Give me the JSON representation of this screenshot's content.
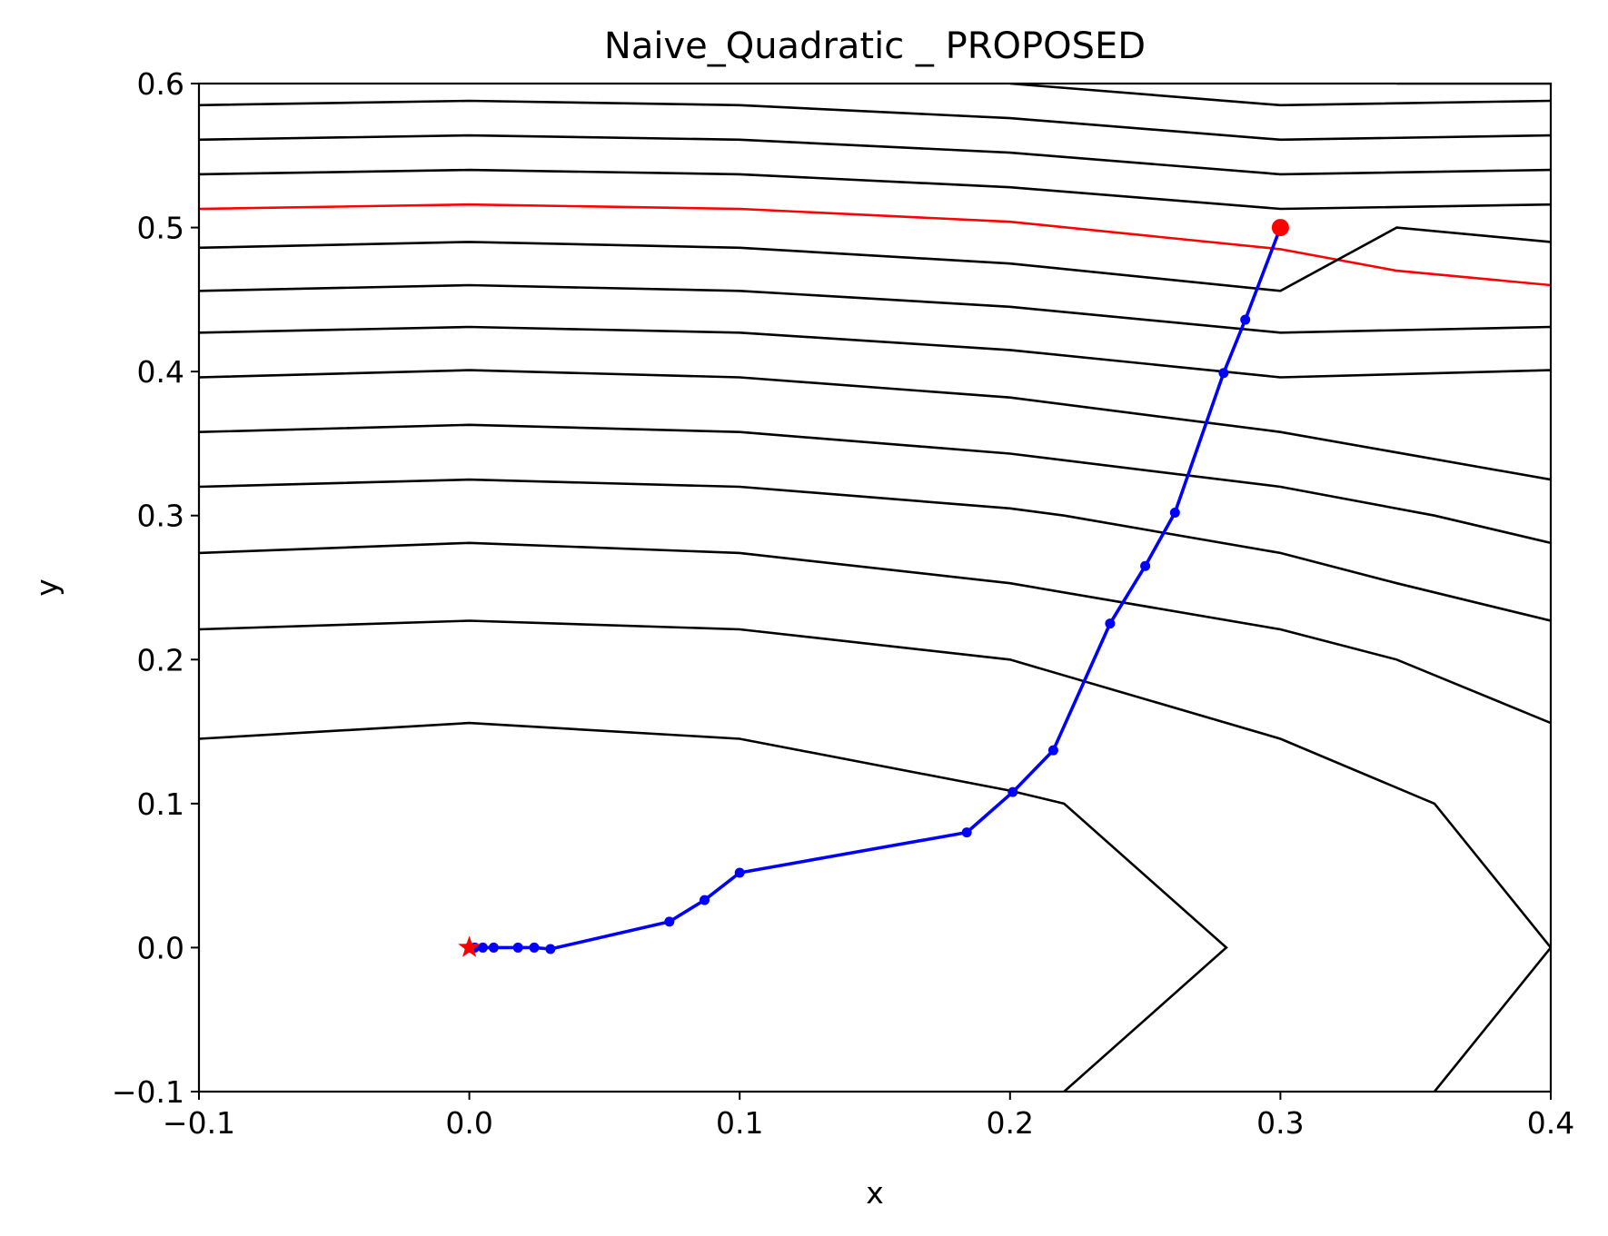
{
  "chart_data": {
    "type": "line",
    "title": "Naive_Quadratic _ PROPOSED",
    "xlabel": "x",
    "ylabel": "y",
    "xlim": [
      -0.1,
      0.4
    ],
    "ylim": [
      -0.1,
      0.6
    ],
    "x_ticks": [
      -0.1,
      0.0,
      0.1,
      0.2,
      0.3,
      0.4
    ],
    "x_tick_labels": [
      "−0.1",
      "0.0",
      "0.1",
      "0.2",
      "0.3",
      "0.4"
    ],
    "y_ticks": [
      -0.1,
      0.0,
      0.1,
      0.2,
      0.3,
      0.4,
      0.5,
      0.6
    ],
    "y_tick_labels": [
      "−0.1",
      "0.0",
      "0.1",
      "0.2",
      "0.3",
      "0.4",
      "0.5",
      "0.6"
    ],
    "grid": false,
    "colors": {
      "contour": "#000000",
      "highlight_contour": "#ff0000",
      "path": "#0000ff",
      "start": "#ff0000",
      "optimum": "#ff0000"
    },
    "contours": [
      {
        "name": "level-1",
        "color": "#000000",
        "points": [
          [
            0.22,
            -0.1
          ],
          [
            0.28,
            0.0
          ],
          [
            0.22,
            0.1
          ],
          [
            0.2,
            0.109
          ],
          [
            0.1,
            0.145
          ],
          [
            0.0,
            0.156
          ],
          [
            -0.1,
            0.145
          ]
        ]
      },
      {
        "name": "level-2",
        "color": "#000000",
        "points": [
          [
            0.357,
            -0.1
          ],
          [
            0.4,
            0.0
          ]
        ]
      },
      {
        "name": "level-3",
        "color": "#000000",
        "points": [
          [
            0.4,
            0.0
          ],
          [
            0.357,
            0.1
          ],
          [
            0.3,
            0.145
          ],
          [
            0.2,
            0.2
          ],
          [
            0.1,
            0.221
          ],
          [
            0.0,
            0.227
          ],
          [
            -0.1,
            0.221
          ]
        ]
      },
      {
        "name": "level-4",
        "color": "#000000",
        "points": [
          [
            0.4,
            0.156
          ],
          [
            0.343,
            0.2
          ],
          [
            0.3,
            0.221
          ],
          [
            0.2,
            0.253
          ],
          [
            0.1,
            0.274
          ],
          [
            0.0,
            0.281
          ],
          [
            -0.1,
            0.274
          ]
        ]
      },
      {
        "name": "level-5",
        "color": "#000000",
        "points": [
          [
            0.4,
            0.227
          ],
          [
            0.343,
            0.253
          ],
          [
            0.3,
            0.274
          ],
          [
            0.22,
            0.3
          ],
          [
            0.2,
            0.305
          ],
          [
            0.1,
            0.32
          ],
          [
            0.0,
            0.325
          ],
          [
            -0.1,
            0.32
          ]
        ]
      },
      {
        "name": "level-6",
        "color": "#000000",
        "points": [
          [
            0.4,
            0.281
          ],
          [
            0.357,
            0.3
          ],
          [
            0.3,
            0.32
          ],
          [
            0.2,
            0.343
          ],
          [
            0.1,
            0.358
          ],
          [
            0.0,
            0.363
          ],
          [
            -0.1,
            0.358
          ]
        ]
      },
      {
        "name": "level-7",
        "color": "#000000",
        "points": [
          [
            0.4,
            0.325
          ],
          [
            0.3,
            0.358
          ],
          [
            0.2,
            0.382
          ],
          [
            0.1,
            0.396
          ],
          [
            0.0,
            0.401
          ],
          [
            -0.1,
            0.396
          ]
        ]
      },
      {
        "name": "level-8",
        "color": "#000000",
        "points": [
          [
            0.4,
            0.401
          ],
          [
            0.3,
            0.396
          ],
          [
            0.2,
            0.415
          ],
          [
            0.1,
            0.427
          ],
          [
            0.0,
            0.431
          ],
          [
            -0.1,
            0.427
          ]
        ]
      },
      {
        "name": "level-9",
        "color": "#000000",
        "points": [
          [
            0.4,
            0.431
          ],
          [
            0.3,
            0.427
          ],
          [
            0.2,
            0.445
          ],
          [
            0.1,
            0.456
          ],
          [
            0.0,
            0.46
          ],
          [
            -0.1,
            0.456
          ]
        ]
      },
      {
        "name": "level-10",
        "color": "#ff0000",
        "points": [
          [
            0.4,
            0.46
          ],
          [
            0.343,
            0.47
          ],
          [
            0.3,
            0.485
          ],
          [
            0.2,
            0.504
          ],
          [
            0.1,
            0.513
          ],
          [
            0.0,
            0.516
          ],
          [
            -0.1,
            0.513
          ]
        ]
      },
      {
        "name": "level-11",
        "color": "#000000",
        "points": [
          [
            0.4,
            0.49
          ],
          [
            0.343,
            0.5
          ],
          [
            0.3,
            0.456
          ],
          [
            0.2,
            0.475
          ],
          [
            0.1,
            0.486
          ],
          [
            0.0,
            0.49
          ],
          [
            -0.1,
            0.486
          ]
        ]
      },
      {
        "name": "level-12",
        "color": "#000000",
        "points": [
          [
            0.4,
            0.516
          ],
          [
            0.3,
            0.513
          ],
          [
            0.2,
            0.528
          ],
          [
            0.1,
            0.537
          ],
          [
            0.0,
            0.54
          ],
          [
            -0.1,
            0.537
          ]
        ]
      },
      {
        "name": "level-13",
        "color": "#000000",
        "points": [
          [
            0.4,
            0.54
          ],
          [
            0.3,
            0.537
          ],
          [
            0.2,
            0.552
          ],
          [
            0.1,
            0.561
          ],
          [
            0.0,
            0.564
          ],
          [
            -0.1,
            0.561
          ]
        ]
      },
      {
        "name": "level-14",
        "color": "#000000",
        "points": [
          [
            0.4,
            0.564
          ],
          [
            0.3,
            0.561
          ],
          [
            0.2,
            0.576
          ],
          [
            0.1,
            0.585
          ],
          [
            0.0,
            0.588
          ],
          [
            -0.1,
            0.585
          ]
        ]
      },
      {
        "name": "level-15",
        "color": "#000000",
        "points": [
          [
            0.4,
            0.588
          ],
          [
            0.3,
            0.585
          ],
          [
            0.2,
            0.6
          ]
        ]
      },
      {
        "name": "level-16",
        "color": "#000000",
        "points": [
          [
            0.4,
            0.6
          ],
          [
            0.343,
            0.6
          ]
        ]
      }
    ],
    "series": [
      {
        "name": "path",
        "color": "#0000ff",
        "x": [
          0.3,
          0.287,
          0.279,
          0.261,
          0.25,
          0.237,
          0.216,
          0.201,
          0.184,
          0.1,
          0.087,
          0.074,
          0.03,
          0.024,
          0.018,
          0.009,
          0.005,
          0.002,
          0.0
        ],
        "y": [
          0.5,
          0.436,
          0.399,
          0.302,
          0.265,
          0.225,
          0.137,
          0.108,
          0.08,
          0.052,
          0.033,
          0.018,
          -0.001,
          0.0,
          0.0,
          0.0,
          0.0,
          0.0,
          0.0
        ]
      }
    ],
    "start_point": [
      0.3,
      0.5
    ],
    "optimum_point": [
      0.0,
      0.0
    ]
  }
}
